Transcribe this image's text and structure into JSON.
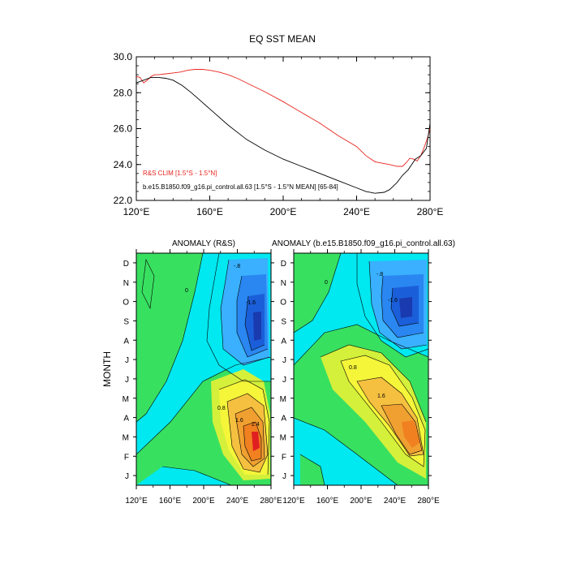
{
  "chart_data": [
    {
      "type": "line",
      "title": "EQ SST MEAN",
      "xlabel": "",
      "ylabel": "",
      "xlim": [
        120,
        280
      ],
      "ylim": [
        22.0,
        30.0
      ],
      "xticks": [
        120,
        160,
        200,
        240,
        280
      ],
      "xtick_labels": [
        "120°E",
        "160°E",
        "200°E",
        "240°E",
        "280°E"
      ],
      "yticks": [
        22,
        24,
        26,
        28,
        30
      ],
      "ytick_labels": [
        "22.0",
        "24.0",
        "26.0",
        "28.0",
        "30.0"
      ],
      "series": [
        {
          "name": "R&S CLIM [1.5°S - 1.5°N]",
          "color": "#e8241c",
          "x": [
            120,
            122,
            124,
            126,
            128,
            130,
            132,
            136,
            140,
            144,
            148,
            152,
            156,
            160,
            165,
            170,
            175,
            180,
            190,
            200,
            210,
            220,
            230,
            240,
            245,
            250,
            255,
            258,
            262,
            265,
            267,
            269,
            271,
            273,
            275,
            277,
            279,
            280
          ],
          "values": [
            28.9,
            28.85,
            28.55,
            28.7,
            28.9,
            29.0,
            29.0,
            29.05,
            29.1,
            29.15,
            29.25,
            29.3,
            29.3,
            29.25,
            29.15,
            29.0,
            28.8,
            28.55,
            28.05,
            27.5,
            26.9,
            26.3,
            25.6,
            25.0,
            24.5,
            24.15,
            24.05,
            24.0,
            23.9,
            23.9,
            24.1,
            24.35,
            24.3,
            24.2,
            24.5,
            25.0,
            25.6,
            26.0
          ]
        },
        {
          "name": "b.e15.B1850.f09_g16.pi_control.all.63 [1.5°S - 1.5°N MEAN] [65-84]",
          "color": "#000000",
          "x": [
            120,
            124,
            128,
            132,
            136,
            140,
            145,
            150,
            160,
            170,
            180,
            190,
            200,
            210,
            220,
            230,
            240,
            245,
            250,
            255,
            258,
            262,
            265,
            268,
            270,
            272,
            275,
            278,
            280
          ],
          "values": [
            28.55,
            28.7,
            28.85,
            28.85,
            28.8,
            28.7,
            28.4,
            28.0,
            27.1,
            26.2,
            25.4,
            24.8,
            24.3,
            23.9,
            23.5,
            23.1,
            22.7,
            22.5,
            22.4,
            22.45,
            22.6,
            23.0,
            23.4,
            23.7,
            24.0,
            24.3,
            24.5,
            24.9,
            26.3
          ]
        }
      ]
    },
    {
      "type": "heatmap",
      "title": "ANOMALY (R&S)",
      "ylabel": "MONTH",
      "xticks": [
        120,
        160,
        200,
        240,
        280
      ],
      "xtick_labels": [
        "120°E",
        "160°E",
        "200°E",
        "240°E",
        "280°E"
      ],
      "months": [
        "J",
        "F",
        "M",
        "A",
        "M",
        "J",
        "J",
        "A",
        "S",
        "O",
        "N",
        "D"
      ],
      "contour_labels": [
        "0",
        "-.8",
        "-1.6",
        "1.6",
        "2.4",
        "0.8"
      ]
    },
    {
      "type": "heatmap",
      "title": "ANOMALY (b.e15.B1850.f09_g16.pi_control.all.63)",
      "ylabel": "",
      "xticks": [
        120,
        160,
        200,
        240,
        280
      ],
      "xtick_labels": [
        "120°E",
        "160°E",
        "200°E",
        "240°E",
        "280°E"
      ],
      "months": [
        "J",
        "F",
        "M",
        "A",
        "M",
        "J",
        "J",
        "A",
        "S",
        "O",
        "N",
        "D"
      ],
      "contour_labels": [
        "0",
        "-.8",
        "-1.6",
        "1.6",
        "0.8"
      ]
    }
  ],
  "colors": {
    "red_series": "#e8241c",
    "black_series": "#000000",
    "neutral_cyan": "#00e8f0",
    "neutral_green": "#38e060",
    "cool_mid": "#3ab0ff",
    "cool_deep": "#1a5fd9",
    "warm_yellow": "#f5f53a",
    "warm_orange": "#f08020",
    "warm_red": "#e02020"
  }
}
